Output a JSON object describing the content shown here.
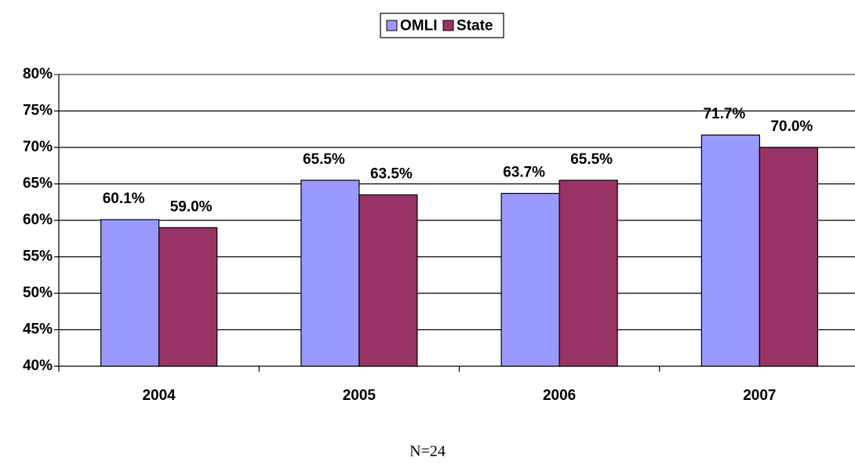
{
  "chart_data": {
    "type": "bar",
    "categories": [
      "2004",
      "2005",
      "2006",
      "2007"
    ],
    "series": [
      {
        "name": "OMLI",
        "color": "#9999ff",
        "values": [
          60.1,
          65.5,
          63.7,
          71.7
        ],
        "value_labels": [
          "60.1%",
          "65.5%",
          "63.7%",
          "71.7%"
        ]
      },
      {
        "name": "State",
        "color": "#993366",
        "values": [
          59.0,
          63.5,
          65.5,
          70.0
        ],
        "value_labels": [
          "59.0%",
          "63.5%",
          "65.5%",
          "70.0%"
        ]
      }
    ],
    "ylim": [
      40,
      80
    ],
    "yticks": [
      {
        "value": 40,
        "label": "40%"
      },
      {
        "value": 45,
        "label": "45%"
      },
      {
        "value": 50,
        "label": "50%"
      },
      {
        "value": 55,
        "label": "55%"
      },
      {
        "value": 60,
        "label": "60%"
      },
      {
        "value": 65,
        "label": "65%"
      },
      {
        "value": 70,
        "label": "70%"
      },
      {
        "value": 75,
        "label": "75%"
      },
      {
        "value": 80,
        "label": "80%"
      }
    ],
    "grid": true,
    "legend": "top",
    "annotation": "N=24"
  }
}
